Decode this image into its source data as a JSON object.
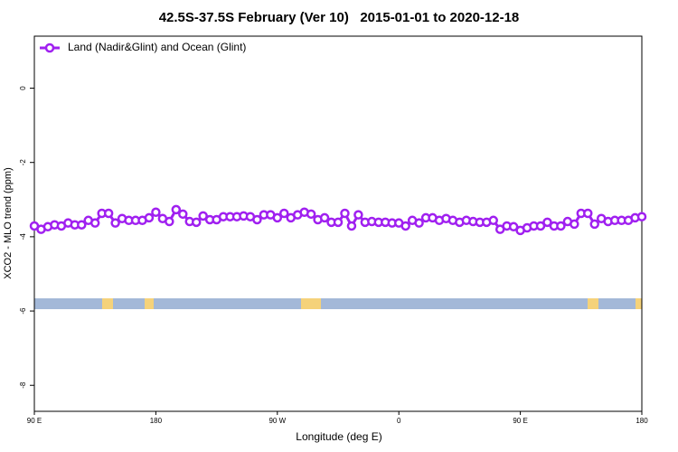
{
  "chart_data": {
    "type": "line",
    "title": "42.5S-37.5S February (Ver 10)   2015-01-01 to 2020-12-18",
    "x_label": "Longitude (deg E)",
    "y_label": "XCO2 - MLO trend (ppm)",
    "xlim": [
      90,
      540
    ],
    "xticks": [
      {
        "value": 90,
        "label": "90 E"
      },
      {
        "value": 180,
        "label": "180"
      },
      {
        "value": 270,
        "label": "90 W"
      },
      {
        "value": 360,
        "label": "0"
      },
      {
        "value": 450,
        "label": "90 E"
      },
      {
        "value": 540,
        "label": "180"
      }
    ],
    "ylim": [
      -8.7,
      1.4
    ],
    "yticks": [
      0,
      -2,
      -4,
      -6,
      -8
    ],
    "legend": "top-left",
    "x": [
      90,
      95,
      100,
      105,
      110,
      115,
      120,
      125,
      130,
      135,
      140,
      145,
      150,
      155,
      160,
      165,
      170,
      175,
      180,
      185,
      190,
      195,
      200,
      205,
      210,
      215,
      220,
      225,
      230,
      235,
      240,
      245,
      250,
      255,
      260,
      265,
      270,
      275,
      280,
      285,
      290,
      295,
      300,
      305,
      310,
      315,
      320,
      325,
      330,
      335,
      340,
      345,
      350,
      355,
      360,
      365,
      370,
      375,
      380,
      385,
      390,
      395,
      400,
      405,
      410,
      415,
      420,
      425,
      430,
      435,
      440,
      445,
      450,
      455,
      460,
      465,
      470,
      475,
      480,
      485,
      490,
      495,
      500,
      505,
      510,
      515,
      520,
      525,
      530,
      535,
      540
    ],
    "series": [
      {
        "name": "Land (Nadir&Glint) and Ocean (Glint)",
        "color": "#a020f0",
        "values": [
          -3.71,
          -3.8,
          -3.73,
          -3.68,
          -3.71,
          -3.63,
          -3.68,
          -3.68,
          -3.56,
          -3.63,
          -3.37,
          -3.37,
          -3.63,
          -3.51,
          -3.56,
          -3.56,
          -3.56,
          -3.49,
          -3.34,
          -3.51,
          -3.59,
          -3.27,
          -3.39,
          -3.59,
          -3.61,
          -3.44,
          -3.54,
          -3.54,
          -3.46,
          -3.46,
          -3.46,
          -3.44,
          -3.46,
          -3.54,
          -3.41,
          -3.41,
          -3.49,
          -3.37,
          -3.49,
          -3.41,
          -3.34,
          -3.39,
          -3.54,
          -3.49,
          -3.61,
          -3.61,
          -3.37,
          -3.71,
          -3.41,
          -3.61,
          -3.59,
          -3.61,
          -3.61,
          -3.63,
          -3.63,
          -3.71,
          -3.56,
          -3.63,
          -3.49,
          -3.49,
          -3.56,
          -3.51,
          -3.56,
          -3.61,
          -3.56,
          -3.59,
          -3.61,
          -3.61,
          -3.56,
          -3.8,
          -3.71,
          -3.73,
          -3.83,
          -3.76,
          -3.71,
          -3.71,
          -3.61,
          -3.71,
          -3.71,
          -3.59,
          -3.66,
          -3.37,
          -3.37,
          -3.66,
          -3.51,
          -3.59,
          -3.56,
          -3.56,
          -3.56,
          -3.49,
          -3.46
        ]
      }
    ]
  }
}
